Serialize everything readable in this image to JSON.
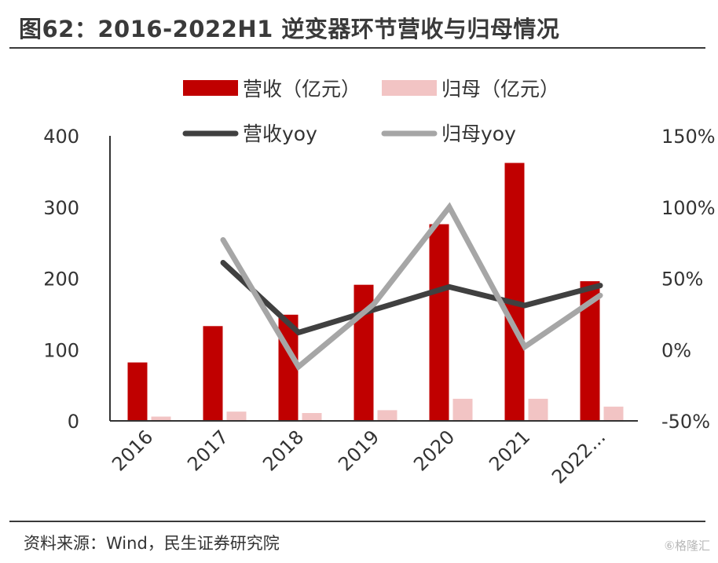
{
  "title": "图62：2016-2022H1 逆变器环节营收与归母情况",
  "source": "资料来源：Wind，民生证券研究院",
  "watermark": "⑥格隆汇",
  "chart_data": {
    "type": "bar+line",
    "categories": [
      "2016",
      "2017",
      "2018",
      "2019",
      "2020",
      "2021",
      "2022..."
    ],
    "series": [
      {
        "name": "营收（亿元）",
        "kind": "bar",
        "axis": "left",
        "color": "#c00000",
        "values": [
          82,
          133,
          149,
          191,
          276,
          362,
          196
        ]
      },
      {
        "name": "归母（亿元）",
        "kind": "bar",
        "axis": "left",
        "color": "#f2c4c4",
        "values": [
          6,
          13,
          11,
          15,
          31,
          31,
          20
        ]
      },
      {
        "name": "营收yoy",
        "kind": "line",
        "axis": "right",
        "color": "#404040",
        "values": [
          null,
          0.61,
          0.12,
          0.28,
          0.44,
          0.31,
          0.45
        ]
      },
      {
        "name": "归母yoy",
        "kind": "line",
        "axis": "right",
        "color": "#a6a6a6",
        "values": [
          null,
          0.77,
          -0.12,
          0.32,
          1.0,
          0.02,
          0.38
        ]
      }
    ],
    "y_left": {
      "min": 0,
      "max": 400,
      "ticks": [
        0,
        100,
        200,
        300,
        400
      ],
      "tick_labels": [
        "0",
        "100",
        "200",
        "300",
        "400"
      ]
    },
    "y_right": {
      "min": -0.5,
      "max": 1.5,
      "ticks": [
        -0.5,
        0,
        0.5,
        1.0,
        1.5
      ],
      "tick_labels": [
        "-50%",
        "0%",
        "50%",
        "100%",
        "150%"
      ]
    },
    "legend_position": "top",
    "grid": false
  }
}
